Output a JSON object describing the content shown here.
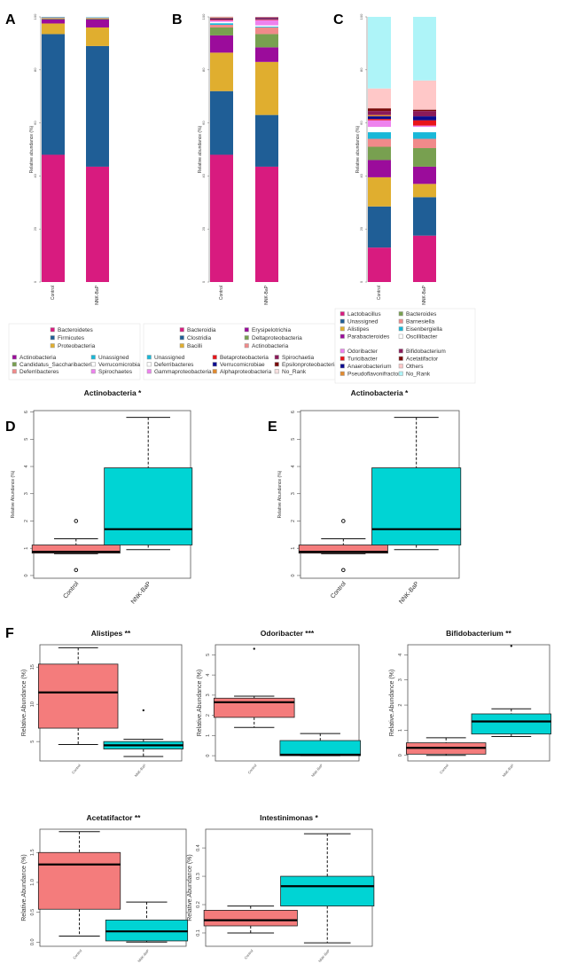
{
  "chart_data": [
    {
      "panel": "A",
      "type": "bar",
      "stacked": true,
      "categories": [
        "Control",
        "NNK-BaP"
      ],
      "ylabel": "Relative abundance (%)",
      "ylim": [
        0,
        100
      ],
      "yticks": [
        "0",
        "20",
        "40",
        "60",
        "80",
        "100"
      ],
      "series": [
        {
          "name": "Bacteroidetes",
          "color": "#d81b7f",
          "values": [
            48,
            43.5
          ]
        },
        {
          "name": "Firmicutes",
          "color": "#1f5e96",
          "values": [
            45.5,
            45.5
          ]
        },
        {
          "name": "Proteobacteria",
          "color": "#e0ae2f",
          "values": [
            4,
            7
          ]
        },
        {
          "name": "Actinobacteria",
          "color": "#9b0c9b",
          "values": [
            1.5,
            3
          ]
        },
        {
          "name": "Candidatus_Saccharibacteria",
          "color": "#78a050",
          "values": [
            0.4,
            0.4
          ]
        },
        {
          "name": "Deferribacteres",
          "color": "#f08a8a",
          "values": [
            0.4,
            0.3
          ]
        },
        {
          "name": "Unassigned",
          "color": "#18b8d8",
          "values": [
            0.2,
            0.2
          ]
        },
        {
          "name": "Verrucomicrobia",
          "color": "#ffffff",
          "values": [
            0,
            0.1
          ]
        },
        {
          "name": "Spirochaetes",
          "color": "#ee82ee",
          "values": [
            0,
            0
          ]
        }
      ]
    },
    {
      "panel": "B",
      "type": "bar",
      "stacked": true,
      "categories": [
        "Control",
        "NNK-BaP"
      ],
      "ylabel": "Relative abundance (%)",
      "ylim": [
        0,
        100
      ],
      "yticks": [
        "0",
        "20",
        "40",
        "60",
        "80",
        "100"
      ],
      "series": [
        {
          "name": "Bacteroidia",
          "color": "#d81b7f",
          "values": [
            48,
            43.5
          ]
        },
        {
          "name": "Clostridia",
          "color": "#1f5e96",
          "values": [
            24,
            19.5
          ]
        },
        {
          "name": "Bacilli",
          "color": "#e0ae2f",
          "values": [
            14.5,
            20
          ]
        },
        {
          "name": "Erysipelotrichia",
          "color": "#9b0c9b",
          "values": [
            6.5,
            5.5
          ]
        },
        {
          "name": "Deltaproteobacteria",
          "color": "#78a050",
          "values": [
            3,
            5
          ]
        },
        {
          "name": "Actinobacteria",
          "color": "#f08a8a",
          "values": [
            1,
            2.5
          ]
        },
        {
          "name": "Unassigned",
          "color": "#18b8d8",
          "values": [
            0.6,
            0.3
          ]
        },
        {
          "name": "Deferribacteres",
          "color": "#ffffff",
          "values": [
            0.5,
            0.5
          ]
        },
        {
          "name": "Gammaproteobacteria",
          "color": "#ee82ee",
          "values": [
            0.6,
            2
          ]
        },
        {
          "name": "Betaproteobacteria",
          "color": "#e8141a",
          "values": [
            0.3,
            0.2
          ]
        },
        {
          "name": "Verrucomicrobiae",
          "color": "#0a0a90",
          "values": [
            0.3,
            0.2
          ]
        },
        {
          "name": "Alphaproteobacteria",
          "color": "#e08a30",
          "values": [
            0.2,
            0.1
          ]
        },
        {
          "name": "Spirochaetia",
          "color": "#8b1a5a",
          "values": [
            0.2,
            0.5
          ]
        },
        {
          "name": "Epsilonproteobacteria",
          "color": "#7a0a0a",
          "values": [
            0.1,
            0.1
          ]
        },
        {
          "name": "No_Rank",
          "color": "#f6e0e0",
          "values": [
            0.4,
            0.1
          ]
        }
      ]
    },
    {
      "panel": "C",
      "type": "bar",
      "stacked": true,
      "categories": [
        "Control",
        "NNK-BaP"
      ],
      "ylabel": "Relative abundance (%)",
      "ylim": [
        0,
        100
      ],
      "yticks": [
        "0",
        "20",
        "40",
        "60",
        "80",
        "100"
      ],
      "series": [
        {
          "name": "Lactobacillus",
          "color": "#d81b7f",
          "values": [
            13,
            17.5
          ]
        },
        {
          "name": "Unassigned",
          "color": "#1f5e96",
          "values": [
            15.5,
            14.5
          ]
        },
        {
          "name": "Alistipes",
          "color": "#e0ae2f",
          "values": [
            11,
            5
          ]
        },
        {
          "name": "Parabacteroides",
          "color": "#9b0c9b",
          "values": [
            6.5,
            6.5
          ]
        },
        {
          "name": "Bacteroides",
          "color": "#78a050",
          "values": [
            5,
            7
          ]
        },
        {
          "name": "Barnesiella",
          "color": "#f08a8a",
          "values": [
            3,
            3.5
          ]
        },
        {
          "name": "Eisenbergiella",
          "color": "#18b8d8",
          "values": [
            2.5,
            2.5
          ]
        },
        {
          "name": "Oscillibacter",
          "color": "#ffffff",
          "values": [
            2,
            2
          ]
        },
        {
          "name": "Odoribacter",
          "color": "#ee82ee",
          "values": [
            2.5,
            0.5
          ]
        },
        {
          "name": "Turicibacter",
          "color": "#e8141a",
          "values": [
            0.5,
            2
          ]
        },
        {
          "name": "Anaerobacterium",
          "color": "#0a0a90",
          "values": [
            1,
            1.5
          ]
        },
        {
          "name": "Pseudoflavonifractor",
          "color": "#e08a30",
          "values": [
            0.5,
            0
          ]
        },
        {
          "name": "Bifidobacterium",
          "color": "#8b1a5a",
          "values": [
            1.5,
            2
          ]
        },
        {
          "name": "Acetatifactor",
          "color": "#7a0a0a",
          "values": [
            1,
            0.5
          ]
        },
        {
          "name": "Others",
          "color": "#ffc8c8",
          "values": [
            7.5,
            11
          ]
        },
        {
          "name": "No_Rank",
          "color": "#aef4f8",
          "values": [
            27,
            24
          ]
        }
      ]
    },
    {
      "panel": "D",
      "type": "box",
      "title": "Actinobacteria *",
      "categories": [
        "Control",
        "NNK-BaP"
      ],
      "ylabel": "Relative Abundance (%)",
      "ylim": [
        -0.1,
        6.05
      ],
      "yticks": [
        0,
        1,
        2,
        3,
        4,
        5,
        6
      ],
      "colors": [
        "#f47c7c",
        "#00d4d4"
      ],
      "boxes": [
        {
          "min": 0.8,
          "q1": 0.82,
          "median": 0.87,
          "q3": 1.12,
          "max": 1.35,
          "outliers": [
            2.0,
            0.2
          ]
        },
        {
          "min": 0.95,
          "q1": 1.12,
          "median": 1.7,
          "q3": 3.95,
          "max": 5.8,
          "outliers": []
        }
      ]
    },
    {
      "panel": "E",
      "type": "box",
      "title": "Actinobacteria *",
      "categories": [
        "Control",
        "NNK-BaP"
      ],
      "ylabel": "Relative Abundance (%)",
      "ylim": [
        -0.1,
        6.05
      ],
      "yticks": [
        0,
        1,
        2,
        3,
        4,
        5,
        6
      ],
      "colors": [
        "#f47c7c",
        "#00d4d4"
      ],
      "boxes": [
        {
          "min": 0.8,
          "q1": 0.82,
          "median": 0.87,
          "q3": 1.12,
          "max": 1.35,
          "outliers": [
            2.0,
            0.2
          ]
        },
        {
          "min": 0.95,
          "q1": 1.12,
          "median": 1.7,
          "q3": 3.95,
          "max": 5.8,
          "outliers": []
        }
      ]
    },
    {
      "panel": "F",
      "type": "box",
      "title": "Alistipes **",
      "categories": [
        "Control",
        "NNK-BaP"
      ],
      "ylabel": "Relative.Abundance (%)",
      "ylim": [
        2.4,
        18
      ],
      "yticks": [
        5,
        10,
        15
      ],
      "colors": [
        "#f47c7c",
        "#00d4d4"
      ],
      "boxes": [
        {
          "min": 4.6,
          "q1": 6.8,
          "median": 11.6,
          "q3": 15.4,
          "max": 17.6,
          "outliers": []
        },
        {
          "min": 3.0,
          "q1": 4.0,
          "median": 4.5,
          "q3": 5.0,
          "max": 5.3,
          "outliers": [
            9.2
          ]
        }
      ]
    },
    {
      "panel": "",
      "type": "box",
      "title": "Odoribacter ***",
      "categories": [
        "Control",
        "NNK-BaP"
      ],
      "ylabel": "Relative.Abundance (%)",
      "ylim": [
        -0.26,
        5.5
      ],
      "yticks": [
        0,
        1,
        2,
        3,
        4,
        5
      ],
      "colors": [
        "#f47c7c",
        "#00d4d4"
      ],
      "boxes": [
        {
          "min": 1.4,
          "q1": 1.9,
          "median": 2.65,
          "q3": 2.85,
          "max": 2.95,
          "outliers": [
            5.3
          ]
        },
        {
          "min": 0,
          "q1": 0,
          "median": 0.05,
          "q3": 0.75,
          "max": 1.1,
          "outliers": []
        }
      ]
    },
    {
      "panel": "",
      "type": "box",
      "title": "Bifidobacterium **",
      "categories": [
        "Control",
        "NNK-BaP"
      ],
      "ylabel": "Relative.Abundance (%)",
      "ylim": [
        -0.22,
        4.4
      ],
      "yticks": [
        0,
        1,
        2,
        3,
        4
      ],
      "colors": [
        "#f47c7c",
        "#00d4d4"
      ],
      "boxes": [
        {
          "min": 0,
          "q1": 0.05,
          "median": 0.3,
          "q3": 0.5,
          "max": 0.7,
          "outliers": []
        },
        {
          "min": 0.75,
          "q1": 0.85,
          "median": 1.35,
          "q3": 1.65,
          "max": 1.85,
          "outliers": [
            4.35
          ]
        }
      ]
    },
    {
      "panel": "",
      "type": "box",
      "title": "Acetatifactor **",
      "categories": [
        "Control",
        "NNK-BaP"
      ],
      "ylabel": "Relative.Abundance (%)",
      "ylim": [
        -0.07,
        1.89
      ],
      "yticks": [
        "0.0",
        "0.5",
        "1.0",
        "1.5"
      ],
      "colors": [
        "#f47c7c",
        "#00d4d4"
      ],
      "boxes": [
        {
          "min": 0.1,
          "q1": 0.55,
          "median": 1.3,
          "q3": 1.5,
          "max": 1.85,
          "outliers": []
        },
        {
          "min": 0,
          "q1": 0.02,
          "median": 0.18,
          "q3": 0.37,
          "max": 0.67,
          "outliers": []
        }
      ]
    },
    {
      "panel": "",
      "type": "box",
      "title": "Intestinimonas *",
      "categories": [
        "Control",
        "NNK-BaP"
      ],
      "ylabel": "Relative.Abundance (%)",
      "ylim": [
        0.053,
        0.466
      ],
      "yticks": [
        "0.1",
        "0.2",
        "0.3",
        "0.4"
      ],
      "colors": [
        "#f47c7c",
        "#00d4d4"
      ],
      "boxes": [
        {
          "min": 0.1,
          "q1": 0.125,
          "median": 0.145,
          "q3": 0.18,
          "max": 0.195,
          "outliers": []
        },
        {
          "min": 0.065,
          "q1": 0.195,
          "median": 0.265,
          "q3": 0.3,
          "max": 0.45,
          "outliers": []
        }
      ]
    }
  ]
}
